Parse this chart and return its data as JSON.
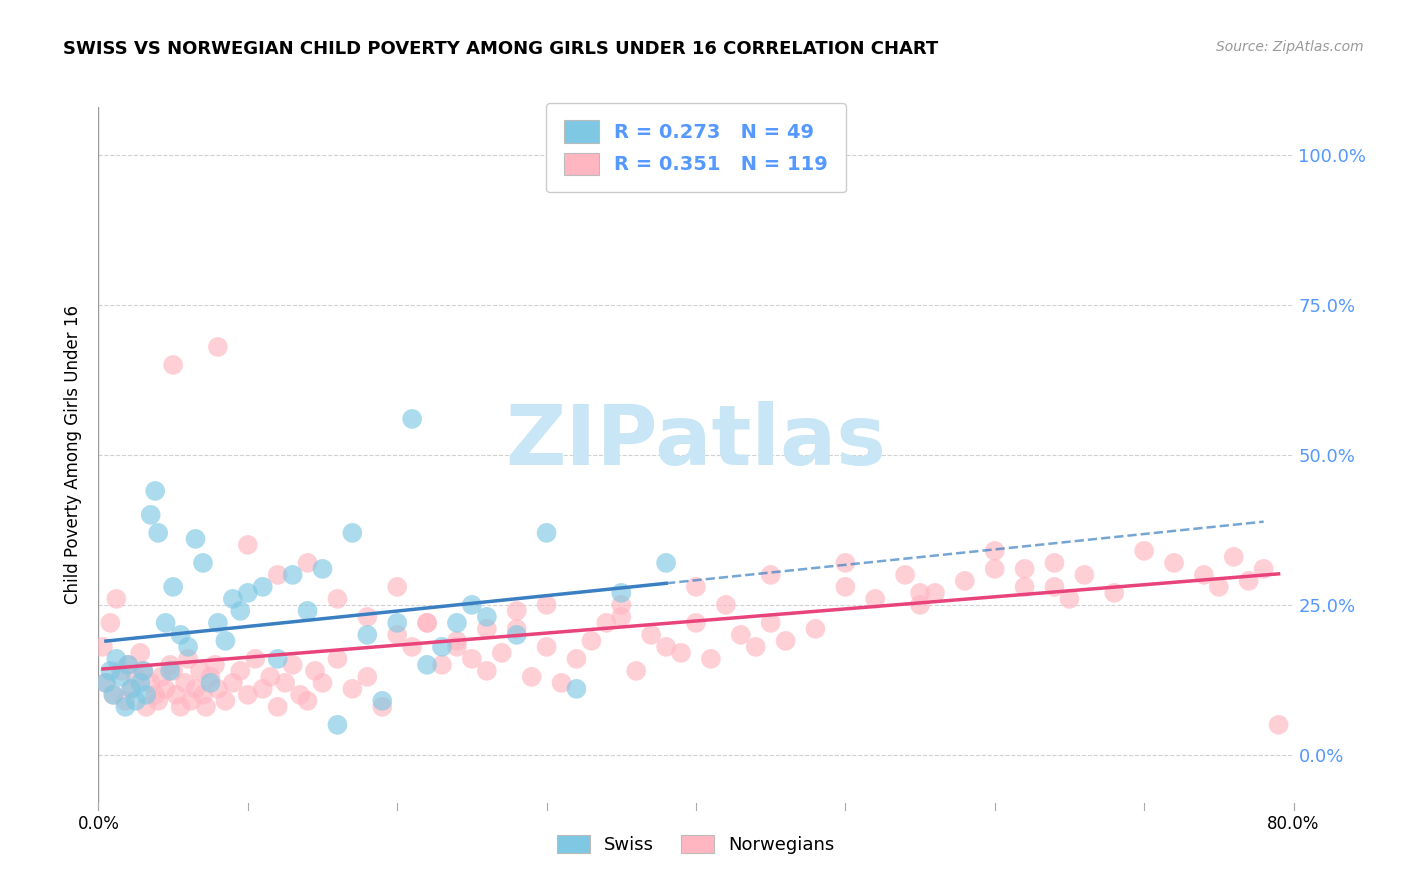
{
  "title": "SWISS VS NORWEGIAN CHILD POVERTY AMONG GIRLS UNDER 16 CORRELATION CHART",
  "source": "Source: ZipAtlas.com",
  "ylabel": "Child Poverty Among Girls Under 16",
  "ytick_values": [
    0.0,
    25.0,
    50.0,
    75.0,
    100.0
  ],
  "xmin": 0.0,
  "xmax": 80.0,
  "ymin": -8.0,
  "ymax": 108.0,
  "legend_swiss_label": "R = 0.273   N = 49",
  "legend_norw_label": "R = 0.351   N = 119",
  "legend_bottom_swiss": "Swiss",
  "legend_bottom_norw": "Norwegians",
  "swiss_color": "#7ec8e3",
  "norw_color": "#ffb6c1",
  "swiss_line_color": "#3a7fc1",
  "norw_line_color": "#e8437a",
  "swiss_x": [
    0.5,
    0.8,
    1.0,
    1.2,
    1.5,
    1.8,
    2.0,
    2.2,
    2.5,
    2.8,
    3.0,
    3.2,
    3.5,
    3.8,
    4.0,
    4.5,
    4.8,
    5.0,
    5.5,
    6.0,
    6.5,
    7.0,
    7.5,
    8.0,
    8.5,
    9.0,
    9.5,
    10.0,
    11.0,
    12.0,
    13.0,
    14.0,
    15.0,
    16.0,
    17.0,
    18.0,
    19.0,
    20.0,
    21.0,
    22.0,
    23.0,
    24.0,
    25.0,
    26.0,
    28.0,
    30.0,
    32.0,
    35.0,
    38.0
  ],
  "swiss_y": [
    12,
    14,
    10,
    16,
    13,
    8,
    15,
    11,
    9,
    12,
    14,
    10,
    40,
    44,
    37,
    22,
    14,
    28,
    20,
    18,
    36,
    32,
    12,
    22,
    19,
    26,
    24,
    27,
    28,
    16,
    30,
    24,
    31,
    5,
    37,
    20,
    9,
    22,
    56,
    15,
    18,
    22,
    25,
    23,
    20,
    37,
    11,
    27,
    32
  ],
  "norw_x": [
    0.3,
    0.5,
    0.8,
    1.0,
    1.2,
    1.5,
    1.8,
    2.0,
    2.2,
    2.5,
    2.8,
    3.0,
    3.2,
    3.5,
    3.8,
    4.0,
    4.2,
    4.5,
    4.8,
    5.0,
    5.2,
    5.5,
    5.8,
    6.0,
    6.2,
    6.5,
    6.8,
    7.0,
    7.2,
    7.5,
    7.8,
    8.0,
    8.5,
    9.0,
    9.5,
    10.0,
    10.5,
    11.0,
    11.5,
    12.0,
    12.5,
    13.0,
    13.5,
    14.0,
    14.5,
    15.0,
    16.0,
    17.0,
    18.0,
    19.0,
    20.0,
    21.0,
    22.0,
    23.0,
    24.0,
    25.0,
    26.0,
    27.0,
    28.0,
    29.0,
    30.0,
    31.0,
    32.0,
    33.0,
    34.0,
    35.0,
    36.0,
    37.0,
    38.0,
    39.0,
    40.0,
    41.0,
    42.0,
    43.0,
    44.0,
    45.0,
    46.0,
    48.0,
    50.0,
    52.0,
    54.0,
    55.0,
    56.0,
    58.0,
    60.0,
    62.0,
    64.0,
    65.0,
    66.0,
    68.0,
    70.0,
    72.0,
    74.0,
    75.0,
    76.0,
    77.0,
    78.0,
    79.0,
    30.0,
    35.0,
    40.0,
    45.0,
    50.0,
    55.0,
    60.0,
    62.0,
    64.0,
    5.0,
    8.0,
    10.0,
    12.0,
    14.0,
    16.0,
    18.0,
    20.0,
    22.0,
    24.0,
    26.0,
    28.0
  ],
  "norw_y": [
    18,
    12,
    22,
    10,
    26,
    14,
    9,
    15,
    11,
    13,
    17,
    14,
    8,
    12,
    10,
    9,
    13,
    11,
    15,
    14,
    10,
    8,
    12,
    16,
    9,
    11,
    14,
    10,
    8,
    13,
    15,
    11,
    9,
    12,
    14,
    10,
    16,
    11,
    13,
    8,
    12,
    15,
    10,
    9,
    14,
    12,
    16,
    11,
    13,
    8,
    20,
    18,
    22,
    15,
    19,
    16,
    14,
    17,
    21,
    13,
    18,
    12,
    16,
    19,
    22,
    25,
    14,
    20,
    18,
    17,
    22,
    16,
    25,
    20,
    18,
    22,
    19,
    21,
    28,
    26,
    30,
    25,
    27,
    29,
    31,
    28,
    32,
    26,
    30,
    27,
    34,
    32,
    30,
    28,
    33,
    29,
    31,
    5,
    25,
    23,
    28,
    30,
    32,
    27,
    34,
    31,
    28,
    65,
    68,
    35,
    30,
    32,
    26,
    23,
    28,
    22,
    18,
    21,
    24
  ],
  "watermark_text": "ZIPatlas",
  "watermark_color": "#c8e6f5",
  "grid_color": "#cccccc",
  "tick_color": "#5599ff",
  "source_color": "#999999"
}
